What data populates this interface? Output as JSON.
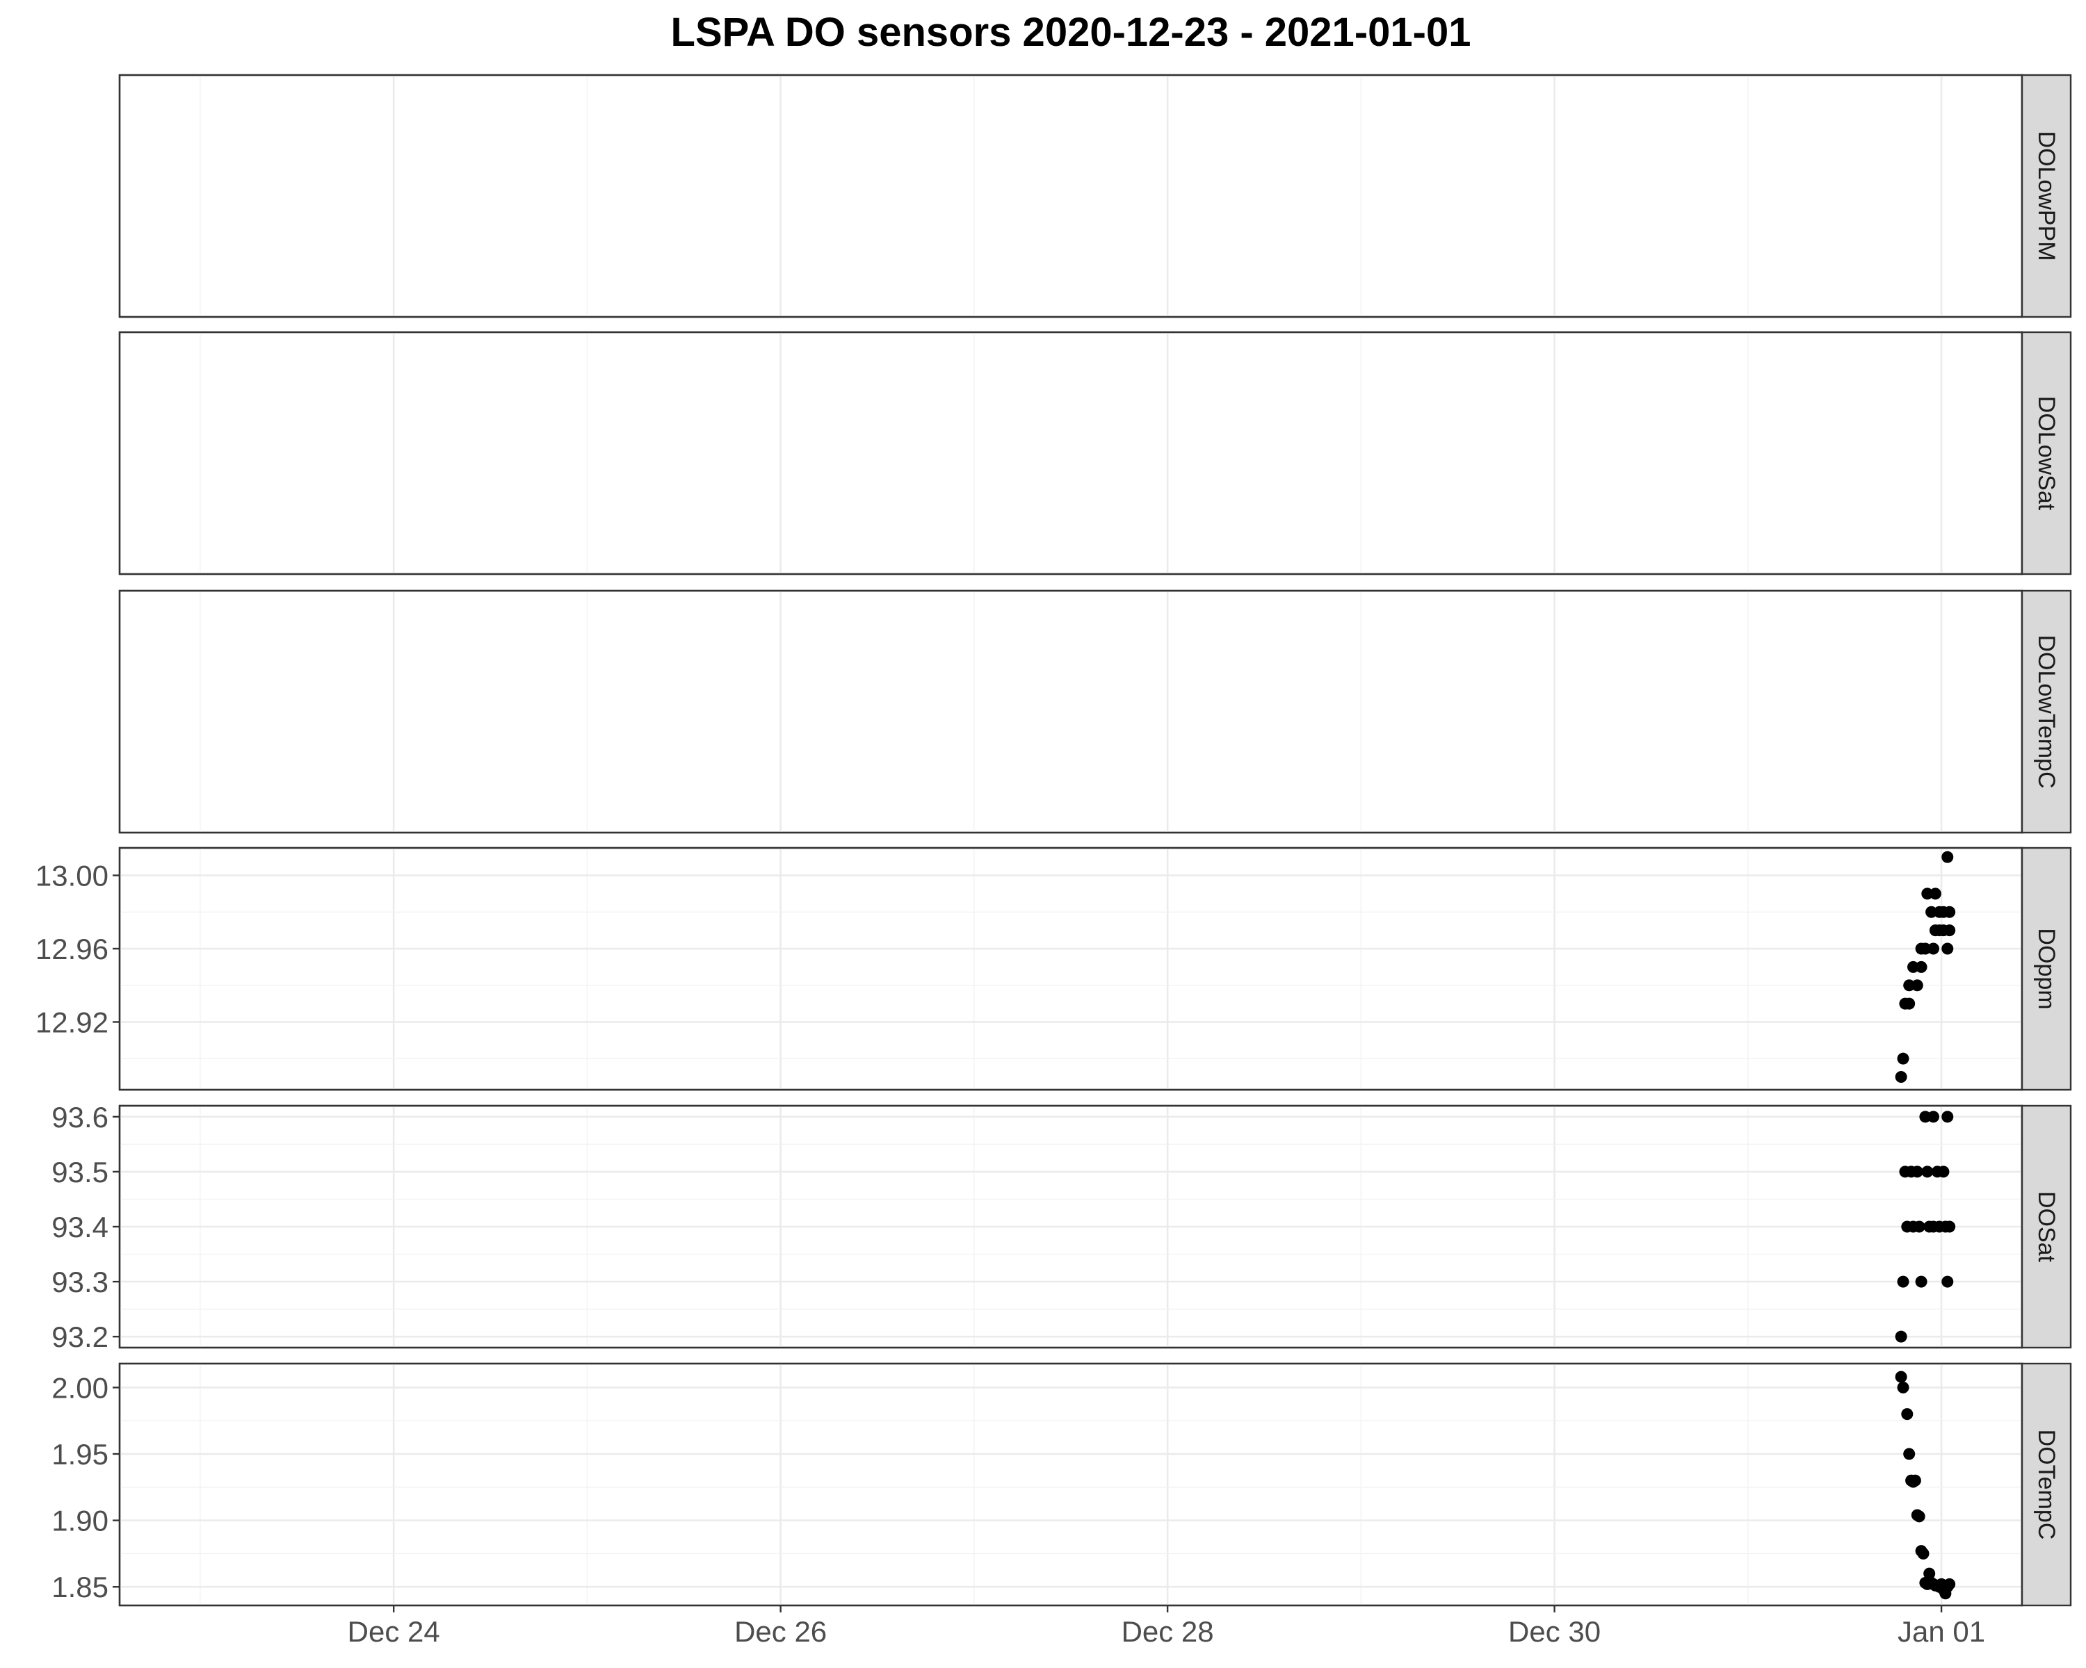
{
  "chart_data": {
    "type": "scatter",
    "title": "LSPA DO sensors 2020-12-23 - 2021-01-01",
    "xlabel": "",
    "ylabel": "",
    "x_axis": {
      "type": "datetime",
      "range": [
        "2020-12-22T14:00",
        "2021-01-01T10:00"
      ],
      "ticks": [
        {
          "value": "2020-12-24",
          "label": "Dec 24"
        },
        {
          "value": "2020-12-26",
          "label": "Dec 26"
        },
        {
          "value": "2020-12-28",
          "label": "Dec 28"
        },
        {
          "value": "2020-12-30",
          "label": "Dec 30"
        },
        {
          "value": "2021-01-01",
          "label": "Jan 01"
        }
      ],
      "minor_ticks": [
        "2020-12-23",
        "2020-12-25",
        "2020-12-27",
        "2020-12-29",
        "2020-12-31"
      ]
    },
    "grid": true,
    "facets": [
      {
        "name": "DOLowPPM",
        "ylim": null,
        "ticks": [],
        "points": []
      },
      {
        "name": "DOLowSat",
        "ylim": null,
        "ticks": [],
        "points": []
      },
      {
        "name": "DOLowTempC",
        "ylim": null,
        "ticks": [],
        "points": []
      },
      {
        "name": "DOppm",
        "ylim": [
          12.883,
          13.015
        ],
        "ticks": [
          {
            "value": 12.92,
            "label": "12.92"
          },
          {
            "value": 12.96,
            "label": "12.96"
          },
          {
            "value": 13.0,
            "label": "13.00"
          }
        ],
        "minor_ticks": [
          12.9,
          12.94,
          12.98
        ],
        "points": [
          [
            "2020-12-31T19:00",
            12.89
          ],
          [
            "2020-12-31T19:15",
            12.9
          ],
          [
            "2020-12-31T19:30",
            12.93
          ],
          [
            "2020-12-31T20:00",
            12.93
          ],
          [
            "2020-12-31T20:00",
            12.94
          ],
          [
            "2020-12-31T20:30",
            12.95
          ],
          [
            "2020-12-31T21:00",
            12.94
          ],
          [
            "2020-12-31T21:30",
            12.95
          ],
          [
            "2020-12-31T21:30",
            12.96
          ],
          [
            "2020-12-31T22:00",
            12.96
          ],
          [
            "2020-12-31T22:15",
            12.99
          ],
          [
            "2020-12-31T22:45",
            12.98
          ],
          [
            "2020-12-31T23:00",
            12.96
          ],
          [
            "2020-12-31T23:15",
            12.99
          ],
          [
            "2020-12-31T23:15",
            12.97
          ],
          [
            "2020-12-31T23:45",
            12.98
          ],
          [
            "2020-12-31T23:45",
            12.97
          ],
          [
            "2021-01-01T00:15",
            12.98
          ],
          [
            "2021-01-01T00:15",
            12.97
          ],
          [
            "2021-01-01T00:45",
            13.01
          ],
          [
            "2021-01-01T00:45",
            12.96
          ],
          [
            "2021-01-01T01:00",
            12.98
          ],
          [
            "2021-01-01T01:00",
            12.97
          ]
        ]
      },
      {
        "name": "DOSat",
        "ylim": [
          93.18,
          93.62
        ],
        "ticks": [
          {
            "value": 93.2,
            "label": "93.2"
          },
          {
            "value": 93.3,
            "label": "93.3"
          },
          {
            "value": 93.4,
            "label": "93.4"
          },
          {
            "value": 93.5,
            "label": "93.5"
          },
          {
            "value": 93.6,
            "label": "93.6"
          }
        ],
        "minor_ticks": [
          93.25,
          93.35,
          93.45,
          93.55
        ],
        "points": [
          [
            "2020-12-31T19:00",
            93.2
          ],
          [
            "2020-12-31T19:15",
            93.3
          ],
          [
            "2020-12-31T19:30",
            93.5
          ],
          [
            "2020-12-31T19:45",
            93.4
          ],
          [
            "2020-12-31T20:15",
            93.5
          ],
          [
            "2020-12-31T20:30",
            93.4
          ],
          [
            "2020-12-31T21:00",
            93.5
          ],
          [
            "2020-12-31T21:15",
            93.4
          ],
          [
            "2020-12-31T21:30",
            93.3
          ],
          [
            "2020-12-31T22:00",
            93.6
          ],
          [
            "2020-12-31T22:15",
            93.5
          ],
          [
            "2020-12-31T22:30",
            93.4
          ],
          [
            "2020-12-31T23:00",
            93.6
          ],
          [
            "2020-12-31T23:00",
            93.4
          ],
          [
            "2020-12-31T23:30",
            93.5
          ],
          [
            "2020-12-31T23:45",
            93.4
          ],
          [
            "2021-01-01T00:15",
            93.5
          ],
          [
            "2021-01-01T00:30",
            93.4
          ],
          [
            "2021-01-01T00:45",
            93.6
          ],
          [
            "2021-01-01T00:45",
            93.3
          ],
          [
            "2021-01-01T01:00",
            93.4
          ]
        ]
      },
      {
        "name": "DOTempC",
        "ylim": [
          1.836,
          2.018
        ],
        "ticks": [
          {
            "value": 1.85,
            "label": "1.85"
          },
          {
            "value": 1.9,
            "label": "1.90"
          },
          {
            "value": 1.95,
            "label": "1.95"
          },
          {
            "value": 2.0,
            "label": "2.00"
          }
        ],
        "minor_ticks": [
          1.875,
          1.925,
          1.975
        ],
        "points": [
          [
            "2020-12-31T19:00",
            2.008
          ],
          [
            "2020-12-31T19:15",
            2.0
          ],
          [
            "2020-12-31T19:45",
            1.98
          ],
          [
            "2020-12-31T20:00",
            1.95
          ],
          [
            "2020-12-31T20:15",
            1.93
          ],
          [
            "2020-12-31T20:30",
            1.929
          ],
          [
            "2020-12-31T20:45",
            1.93
          ],
          [
            "2020-12-31T21:00",
            1.904
          ],
          [
            "2020-12-31T21:15",
            1.903
          ],
          [
            "2020-12-31T21:30",
            1.877
          ],
          [
            "2020-12-31T21:45",
            1.875
          ],
          [
            "2020-12-31T22:00",
            1.853
          ],
          [
            "2020-12-31T22:15",
            1.852
          ],
          [
            "2020-12-31T22:30",
            1.86
          ],
          [
            "2020-12-31T22:45",
            1.853
          ],
          [
            "2020-12-31T23:00",
            1.852
          ],
          [
            "2020-12-31T23:15",
            1.851
          ],
          [
            "2020-12-31T23:30",
            1.851
          ],
          [
            "2020-12-31T23:45",
            1.85
          ],
          [
            "2021-01-01T00:00",
            1.852
          ],
          [
            "2021-01-01T00:15",
            1.848
          ],
          [
            "2021-01-01T00:30",
            1.845
          ],
          [
            "2021-01-01T00:45",
            1.85
          ],
          [
            "2021-01-01T01:00",
            1.852
          ]
        ]
      }
    ]
  }
}
